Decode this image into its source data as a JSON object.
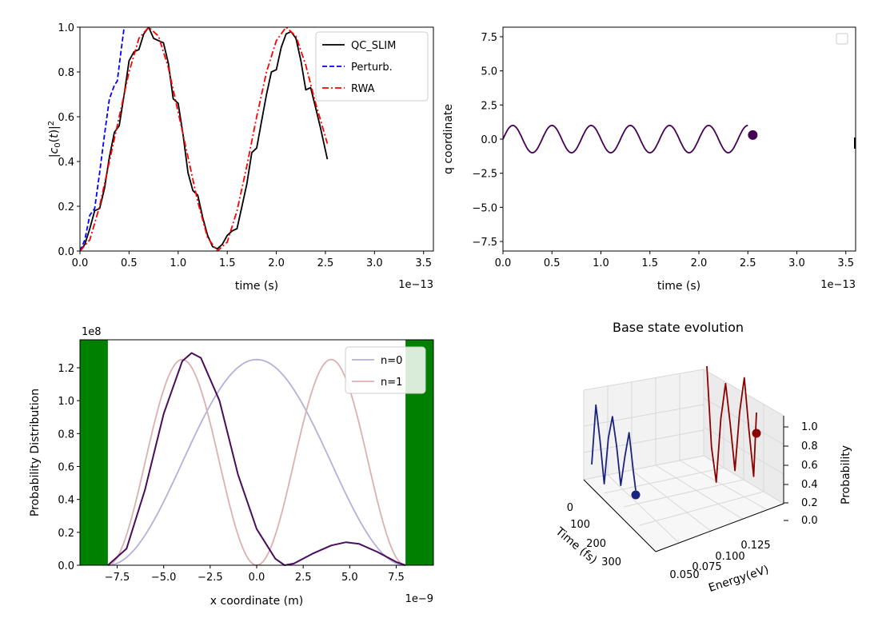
{
  "chart_data": [
    {
      "type": "line",
      "xlabel": "time (s)",
      "ylabel": "|c_0(t)|^2",
      "x_offset_text": "1e−13",
      "xlim": [
        0,
        3.6
      ],
      "ylim": [
        0,
        1.0
      ],
      "xticks": [
        "0.0",
        "0.5",
        "1.0",
        "1.5",
        "2.0",
        "2.5",
        "3.0",
        "3.5"
      ],
      "yticks": [
        "0.0",
        "0.2",
        "0.4",
        "0.6",
        "0.8",
        "1.0"
      ],
      "legend": {
        "position": "top-right",
        "entries": [
          "QC_SLIM",
          "Perturb.",
          "RWA"
        ]
      },
      "series": [
        {
          "name": "QC_SLIM",
          "color": "#000000",
          "style": "solid",
          "x": [
            0,
            0.05,
            0.1,
            0.15,
            0.2,
            0.25,
            0.3,
            0.35,
            0.4,
            0.45,
            0.5,
            0.55,
            0.6,
            0.65,
            0.7,
            0.75,
            0.8,
            0.85,
            0.9,
            0.95,
            1.0,
            1.05,
            1.1,
            1.15,
            1.2,
            1.25,
            1.3,
            1.35,
            1.4,
            1.45,
            1.5,
            1.55,
            1.6,
            1.65,
            1.7,
            1.75,
            1.8,
            1.85,
            1.9,
            1.95,
            2.0,
            2.05,
            2.1,
            2.15,
            2.2,
            2.25,
            2.3,
            2.35,
            2.4,
            2.45,
            2.52
          ],
          "y": [
            0,
            0.03,
            0.1,
            0.18,
            0.19,
            0.28,
            0.42,
            0.53,
            0.56,
            0.7,
            0.85,
            0.89,
            0.9,
            0.97,
            1.0,
            0.95,
            0.94,
            0.93,
            0.84,
            0.68,
            0.66,
            0.52,
            0.35,
            0.27,
            0.25,
            0.15,
            0.07,
            0.02,
            0.01,
            0.03,
            0.07,
            0.09,
            0.1,
            0.2,
            0.3,
            0.44,
            0.46,
            0.58,
            0.7,
            0.8,
            0.81,
            0.91,
            0.97,
            0.98,
            0.95,
            0.85,
            0.72,
            0.73,
            0.64,
            0.55,
            0.41
          ]
        },
        {
          "name": "Perturb.",
          "color": "#0000ff",
          "style": "dashed",
          "x": [
            0,
            0.05,
            0.1,
            0.15,
            0.2,
            0.25,
            0.3,
            0.35,
            0.38,
            0.42,
            0.45
          ],
          "y": [
            0,
            0.05,
            0.16,
            0.19,
            0.35,
            0.52,
            0.68,
            0.74,
            0.76,
            0.9,
            1.0
          ]
        },
        {
          "name": "RWA",
          "color": "#ff0000",
          "style": "dashdot",
          "x": [
            0,
            0.1,
            0.2,
            0.3,
            0.4,
            0.5,
            0.6,
            0.7,
            0.8,
            0.9,
            1.0,
            1.1,
            1.2,
            1.3,
            1.4,
            1.5,
            1.6,
            1.7,
            1.8,
            1.9,
            2.0,
            2.1,
            2.2,
            2.3,
            2.4,
            2.52
          ],
          "y": [
            0,
            0.05,
            0.2,
            0.4,
            0.6,
            0.8,
            0.95,
            1.0,
            0.96,
            0.82,
            0.62,
            0.42,
            0.22,
            0.06,
            0.0,
            0.04,
            0.18,
            0.38,
            0.6,
            0.8,
            0.94,
            1.0,
            0.96,
            0.83,
            0.66,
            0.48
          ]
        }
      ]
    },
    {
      "type": "line",
      "xlabel": "time (s)",
      "ylabel": "q coordinate",
      "x_offset_text": "1e−13",
      "xlim": [
        0,
        3.6
      ],
      "ylim": [
        -8.2,
        8.2
      ],
      "xticks": [
        "0.0",
        "0.5",
        "1.0",
        "1.5",
        "2.0",
        "2.5",
        "3.0",
        "3.5"
      ],
      "yticks": [
        "7.5",
        "5.0",
        "2.5",
        "0.0",
        "−2.5",
        "−5.0",
        "−7.5"
      ],
      "legend": {
        "position": "top-right",
        "entries": []
      },
      "series": [
        {
          "color": "#440154",
          "style": "solid",
          "function": "sin",
          "amplitude": 1.0,
          "period": 0.4,
          "x_start": 0,
          "x_end": 2.5
        }
      ],
      "marker": {
        "x": 2.55,
        "y": 0.3,
        "color": "#440154"
      }
    },
    {
      "type": "line",
      "xlabel": "x coordinate (m)",
      "ylabel": "Probability Distribution",
      "x_offset_text": "1e−9",
      "y_offset_text": "1e8",
      "xlim": [
        -9.5,
        9.5
      ],
      "ylim": [
        0,
        1.37
      ],
      "xticks": [
        "−7.5",
        "−5.0",
        "−2.5",
        "0.0",
        "2.5",
        "5.0",
        "7.5"
      ],
      "yticks": [
        "0.0",
        "0.2",
        "0.4",
        "0.6",
        "0.8",
        "1.0",
        "1.2"
      ],
      "walls": [
        {
          "from": -9.5,
          "to": -8.0,
          "color": "#008000"
        },
        {
          "from": 8.0,
          "to": 9.5,
          "color": "#008000"
        }
      ],
      "legend": {
        "position": "top-right",
        "entries": [
          "n=0",
          "n=1"
        ]
      },
      "series": [
        {
          "name": "n=0",
          "color": "#b4b0dc",
          "style": "solid",
          "function": "cos2",
          "amplitude": 1.25
        },
        {
          "name": "n=1",
          "color": "#dcb0b0",
          "style": "solid",
          "function": "sin2",
          "amplitude": 1.25
        },
        {
          "color": "#4a0c5c",
          "style": "solid",
          "x": [
            -8.0,
            -7.0,
            -6.0,
            -5.0,
            -4.0,
            -3.5,
            -3.0,
            -2.0,
            -1.0,
            0.0,
            1.0,
            1.5,
            2.0,
            3.0,
            4.0,
            4.8,
            5.5,
            6.5,
            7.5,
            8.0
          ],
          "y": [
            0,
            0.1,
            0.46,
            0.92,
            1.24,
            1.29,
            1.26,
            1.0,
            0.55,
            0.22,
            0.04,
            0.0,
            0.01,
            0.07,
            0.12,
            0.14,
            0.13,
            0.08,
            0.02,
            0
          ]
        }
      ]
    },
    {
      "type": "line",
      "title": "Base state evolution",
      "xlabel": "Time (fs)",
      "ylabel": "Energy(eV)",
      "zlabel": "Probability",
      "time_ticks": [
        "0",
        "100",
        "200",
        "300"
      ],
      "energy_ticks": [
        "0.050",
        "0.075",
        "0.100",
        "0.125"
      ],
      "prob_ticks": [
        "1.0",
        "0.8",
        "0.6",
        "0.4",
        "0.2",
        "0.0"
      ],
      "series": [
        {
          "color": "#1a237e",
          "style": "solid",
          "energy": 0.05,
          "x": [
            0,
            25,
            50,
            75,
            100,
            125,
            150,
            175,
            200,
            225,
            250,
            265
          ],
          "y": [
            0.2,
            1.0,
            0.55,
            0.0,
            0.62,
            0.92,
            0.55,
            0.05,
            0.45,
            0.78,
            0.3,
            0.05
          ]
        },
        {
          "color": "#8b0000",
          "style": "solid",
          "energy": 0.13,
          "x": [
            0,
            25,
            50,
            75,
            100,
            125,
            150,
            175,
            200,
            225,
            250,
            265
          ],
          "y": [
            1.0,
            0.3,
            0.0,
            0.55,
            0.85,
            0.5,
            0.1,
            0.6,
            0.9,
            0.45,
            0.05,
            0.6
          ]
        }
      ],
      "markers": [
        {
          "color": "#1a237e"
        },
        {
          "color": "#8b0000"
        }
      ]
    }
  ]
}
